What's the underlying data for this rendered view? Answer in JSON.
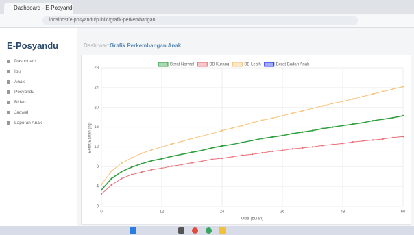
{
  "browser": {
    "tab": "Dashboard - E-Posyandu",
    "url": "localhost/e-posyandu/public/grafik-perkembangan"
  },
  "sidebar": {
    "brand": "E-Posyandu",
    "menu": [
      "Dashboard",
      "Ibu",
      "Anak",
      "Posyandu",
      "Bidan",
      "Jadwal",
      "Laporan Anak"
    ]
  },
  "header": {
    "breadcrumb": "Dashboard /",
    "title": "Grafik Perkembangan Anak"
  },
  "chart_data": {
    "type": "line",
    "x_label": "Usia (bulan)",
    "y_label": "Berat Badan (kg)",
    "x": [
      0,
      2,
      4,
      6,
      8,
      10,
      12,
      14,
      16,
      18,
      20,
      22,
      24,
      26,
      28,
      30,
      32,
      34,
      36,
      38,
      40,
      42,
      44,
      46,
      48,
      50,
      52,
      54,
      56,
      58,
      60
    ],
    "xlim": [
      0,
      60
    ],
    "xticks": [
      0,
      12,
      24,
      36,
      48,
      60
    ],
    "ylim": [
      0,
      28
    ],
    "yticks": [
      0,
      4,
      8,
      12,
      16,
      20,
      24,
      28
    ],
    "grid": true,
    "series": [
      {
        "name": "Berat Normal",
        "color": "#2e9e3e",
        "values": [
          3.3,
          5.6,
          7.0,
          7.9,
          8.6,
          9.2,
          9.6,
          10.1,
          10.5,
          10.9,
          11.3,
          11.8,
          12.2,
          12.5,
          12.9,
          13.3,
          13.7,
          14.0,
          14.3,
          14.7,
          15.0,
          15.3,
          15.7,
          16.0,
          16.3,
          16.6,
          16.9,
          17.3,
          17.6,
          17.9,
          18.3
        ]
      },
      {
        "name": "BB Kurang",
        "color": "#e8707a",
        "values": [
          2.5,
          4.3,
          5.6,
          6.4,
          6.9,
          7.4,
          7.7,
          8.1,
          8.4,
          8.8,
          9.1,
          9.5,
          9.7,
          10.0,
          10.3,
          10.5,
          10.8,
          11.1,
          11.3,
          11.6,
          11.8,
          12.0,
          12.3,
          12.5,
          12.7,
          13.0,
          13.2,
          13.4,
          13.6,
          13.9,
          14.1
        ]
      },
      {
        "name": "BB Lebih",
        "color": "#f5c27a",
        "values": [
          4.4,
          7.1,
          8.7,
          9.8,
          10.7,
          11.4,
          12.0,
          12.6,
          13.1,
          13.7,
          14.2,
          14.7,
          15.3,
          15.8,
          16.3,
          16.9,
          17.4,
          17.8,
          18.3,
          18.8,
          19.3,
          19.8,
          20.3,
          20.8,
          21.2,
          21.7,
          22.2,
          22.7,
          23.2,
          23.7,
          24.2
        ]
      },
      {
        "name": "Berat Badan Anak",
        "color": "#1a2ee8",
        "values": [
          null,
          null,
          null,
          null,
          null,
          null,
          null,
          null,
          null,
          null,
          null,
          null,
          null,
          null,
          null,
          null,
          null,
          null,
          null,
          null,
          null,
          null,
          null,
          null,
          null,
          null,
          null,
          null,
          null,
          null,
          null
        ]
      }
    ]
  }
}
